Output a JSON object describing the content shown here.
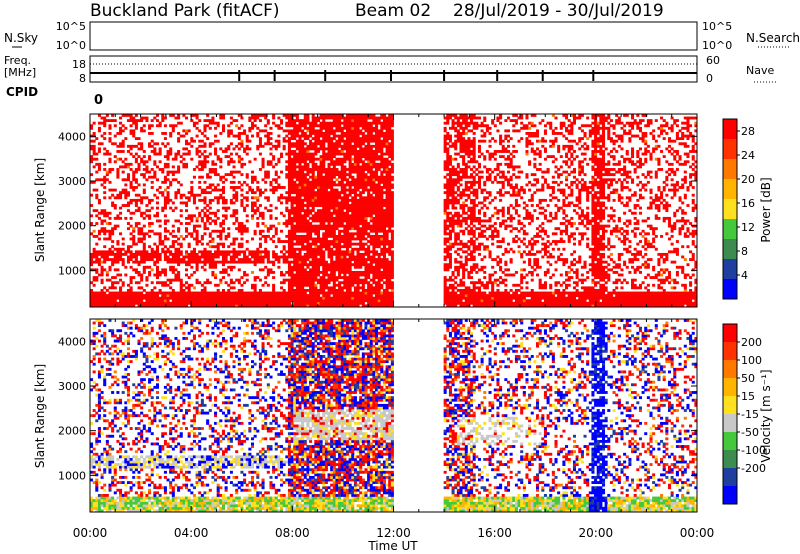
{
  "header": {
    "site": "Buckland Park (fitACF)",
    "beam": "Beam 02",
    "dates": "28/Jul/2019 - 30/Jul/2019"
  },
  "top_strips": {
    "nsky_label": "N.Sky",
    "nsky_ticks": [
      "10^5",
      "10^0"
    ],
    "nsearch_label": "N.Search",
    "nsearch_ticks": [
      "10^5",
      "10^0"
    ],
    "freq_label": "Freq.",
    "freq_unit": "[MHz]",
    "freq_ticks": [
      "18",
      "8"
    ],
    "nave_label": "Nave",
    "nave_ticks": [
      "60",
      "0"
    ],
    "cpid_label": "CPID",
    "cpid_value": "0"
  },
  "colors": {
    "power": [
      "#0000ff",
      "#1e3ea0",
      "#3c8c50",
      "#46c83c",
      "#ffe01e",
      "#ffb400",
      "#ff7800",
      "#ff3200",
      "#ff0000"
    ],
    "velocity": [
      "#0000ff",
      "#1e3ea0",
      "#3c8c50",
      "#46c83c",
      "#c8c8c8",
      "#ffe01e",
      "#ffb400",
      "#ff7800",
      "#ff3200",
      "#ff0000"
    ]
  },
  "chart_data": [
    {
      "type": "heatmap",
      "title": "",
      "xlabel": "Time UT",
      "ylabel": "Slant Range [km]",
      "xticks": [
        "00:00",
        "04:00",
        "08:00",
        "12:00",
        "16:00",
        "20:00",
        "00:00"
      ],
      "yticks": [
        "1000",
        "2000",
        "3000",
        "4000"
      ],
      "xlim_hours": [
        0,
        24
      ],
      "ylim_km": [
        180,
        4500
      ],
      "data_gap_hours": [
        12.0,
        14.0
      ],
      "colorbar": {
        "label": "Power [dB]",
        "ticks": [
          "4",
          "8",
          "12",
          "16",
          "20",
          "24",
          "28"
        ],
        "range": [
          0,
          30
        ]
      }
    },
    {
      "type": "heatmap",
      "title": "",
      "xlabel": "Time UT",
      "ylabel": "Slant Range [km]",
      "xticks": [
        "00:00",
        "04:00",
        "08:00",
        "12:00",
        "16:00",
        "20:00",
        "00:00"
      ],
      "yticks": [
        "1000",
        "2000",
        "3000",
        "4000"
      ],
      "xlim_hours": [
        0,
        24
      ],
      "ylim_km": [
        180,
        4500
      ],
      "data_gap_hours": [
        12.0,
        14.0
      ],
      "colorbar": {
        "label": "Velocity [m s⁻¹]",
        "ticks": [
          "200",
          "100",
          "50",
          "15",
          "-15",
          "-50",
          "-100",
          "-200"
        ],
        "range": [
          -250,
          250
        ]
      }
    }
  ]
}
